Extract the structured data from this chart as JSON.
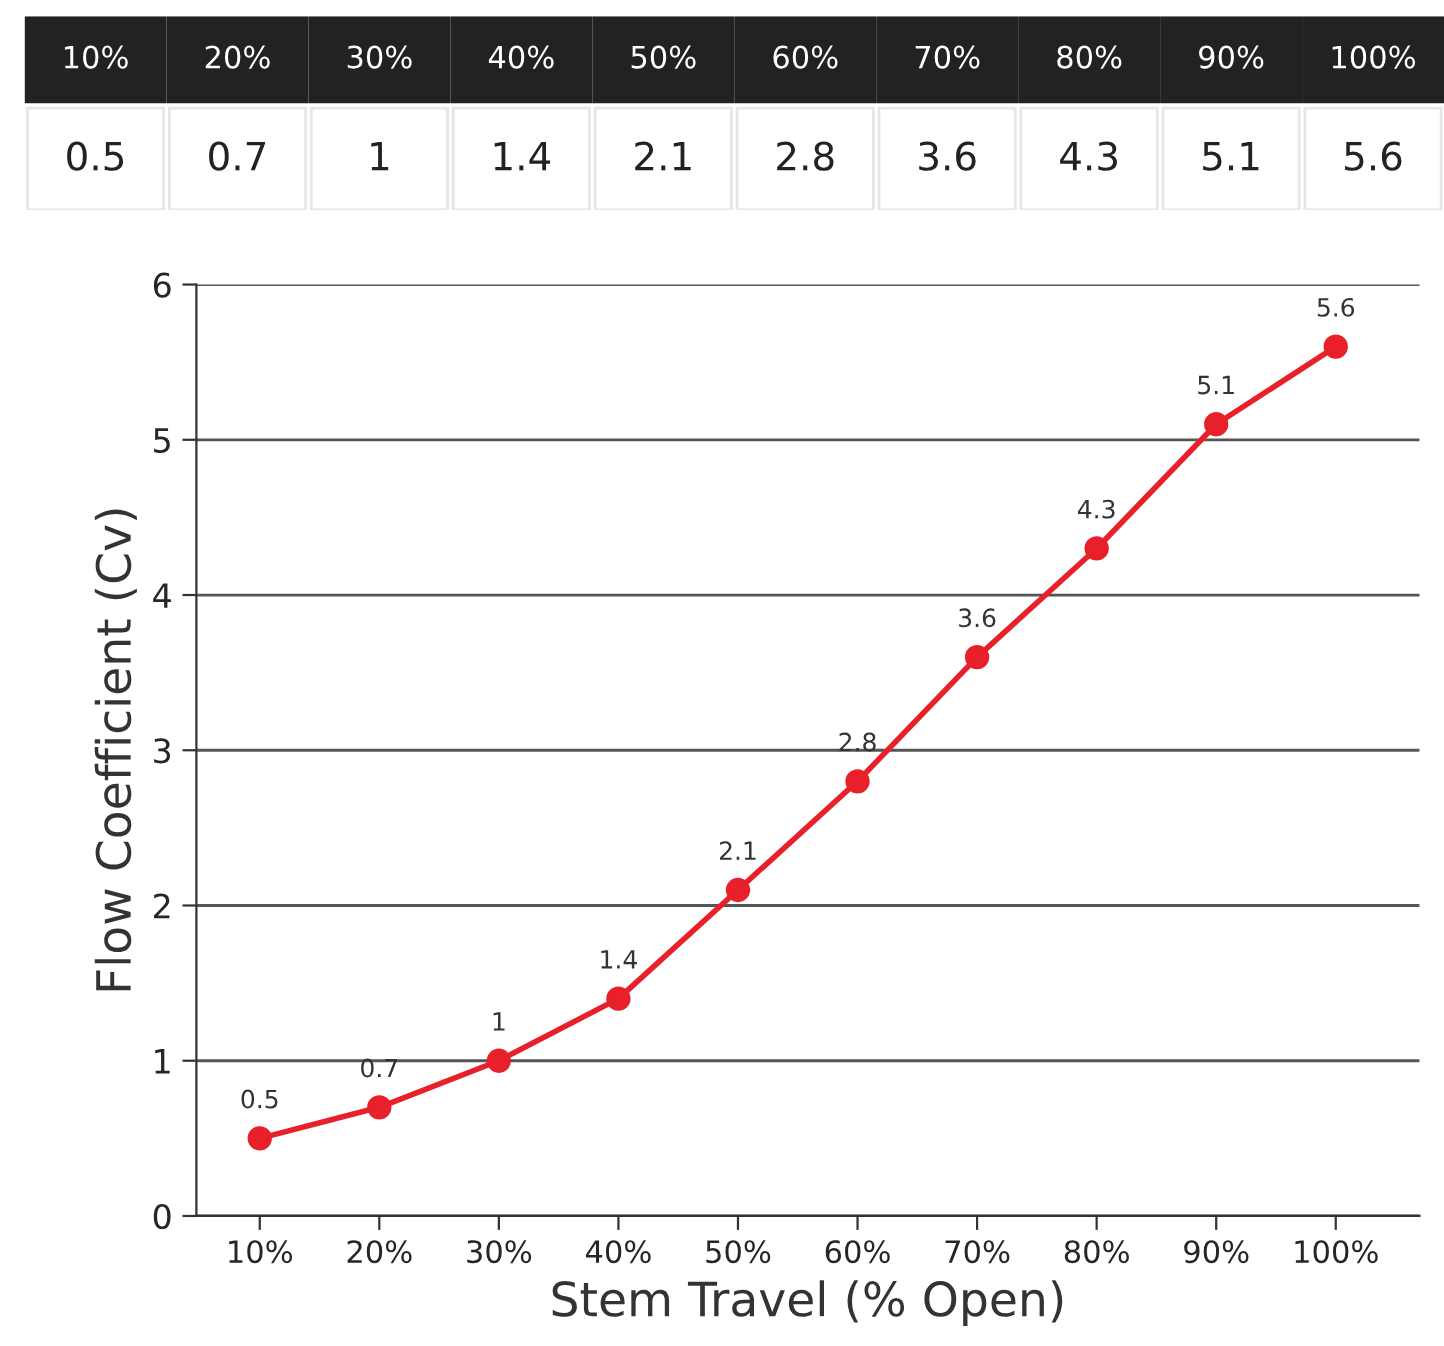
{
  "chart_data": {
    "type": "line",
    "categories": [
      "10%",
      "20%",
      "30%",
      "40%",
      "50%",
      "60%",
      "70%",
      "80%",
      "90%",
      "100%"
    ],
    "series": [
      {
        "color": "#e8202a",
        "values": [
          0.5,
          0.7,
          1,
          1.4,
          2.1,
          2.8,
          3.6,
          4.3,
          5.1,
          5.6
        ]
      }
    ],
    "annotations": [
      "0.5",
      "0.7",
      "1",
      "1.4",
      "2.1",
      "2.8",
      "3.6",
      "4.3",
      "5.1",
      "5.6"
    ],
    "xlabel": "Stem Travel (% Open)",
    "ylabel": "Flow Coefficient (Cv)",
    "ylim": [
      0,
      6
    ],
    "yticks": [
      0,
      1,
      2,
      3,
      4,
      5,
      6
    ],
    "grid": "y",
    "marker": "circle",
    "line_style": "solid",
    "data_labels": true
  }
}
